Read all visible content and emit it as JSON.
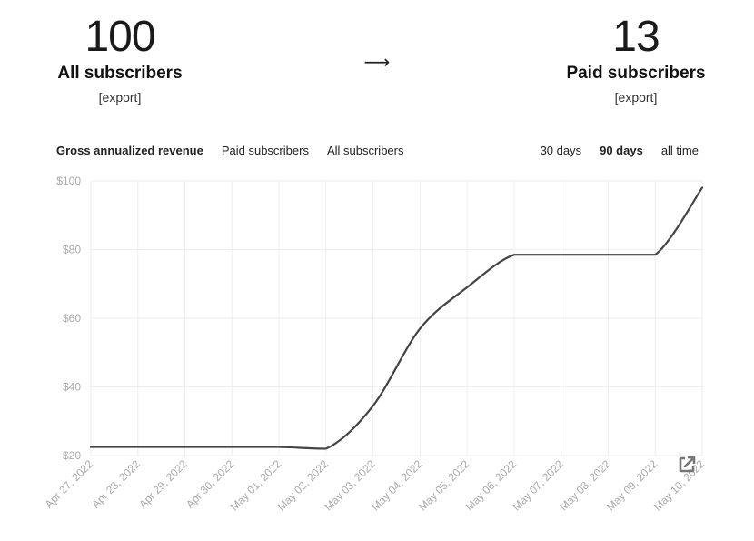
{
  "stats": {
    "all": {
      "number": "100",
      "label": "All subscribers",
      "export": "[export]"
    },
    "arrow": "⟶",
    "paid": {
      "number": "13",
      "label": "Paid subscribers",
      "export": "[export]"
    }
  },
  "tabs": {
    "metrics": [
      "Gross annualized revenue",
      "Paid subscribers",
      "All subscribers"
    ],
    "active_metric": 0,
    "ranges": [
      "30 days",
      "90 days",
      "all time"
    ],
    "active_range": 1
  },
  "icons": {
    "external_link": "external-link-icon"
  },
  "colors": {
    "line": "#444444",
    "grid": "#eeeeee",
    "tick": "#aaaaaa"
  },
  "chart_data": {
    "type": "line",
    "categories": [
      "Apr 27, 2022",
      "Apr 28, 2022",
      "Apr 29, 2022",
      "Apr 30, 2022",
      "May 01, 2022",
      "May 02, 2022",
      "May 03, 2022",
      "May 04, 2022",
      "May 05, 2022",
      "May 06, 2022",
      "May 07, 2022",
      "May 08, 2022",
      "May 09, 2022",
      "May 10, 2022"
    ],
    "series": [
      {
        "values": [
          22.5,
          22.5,
          22.5,
          22.5,
          22.5,
          22,
          34.5,
          57,
          69,
          78.5,
          78.5,
          78.5,
          78.5,
          98
        ]
      }
    ],
    "yticks": [
      "$20",
      "$40",
      "$60",
      "$80",
      "$100"
    ],
    "ylim": [
      20,
      100
    ],
    "grid": true,
    "legend": "none"
  }
}
